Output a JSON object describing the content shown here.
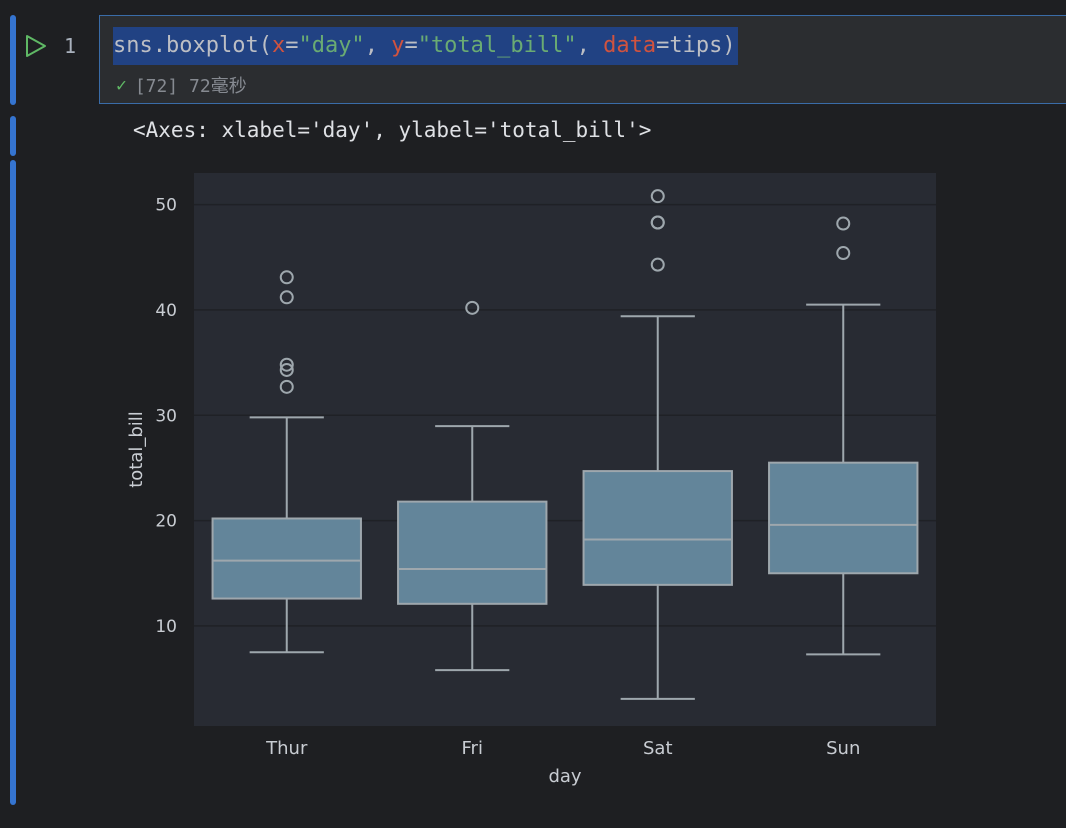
{
  "cell": {
    "line_number": "1",
    "code": {
      "fn": "sns.boxplot(",
      "k1": "x",
      "eq1": "=",
      "s1": "\"day\"",
      "sep1": ", ",
      "k2": "y",
      "eq2": "=",
      "s2": "\"total_bill\"",
      "sep2": ", ",
      "k3": "data",
      "eq3": "=",
      "rest": "tips)"
    },
    "status": "[72] 72毫秒"
  },
  "output": {
    "text": "<Axes: xlabel='day', ylabel='total_bill'>"
  },
  "chart_data": {
    "type": "box",
    "xlabel": "day",
    "ylabel": "total_bill",
    "ylim": [
      0.5,
      53
    ],
    "yticks": [
      10,
      20,
      30,
      40,
      50
    ],
    "categories": [
      "Thur",
      "Fri",
      "Sat",
      "Sun"
    ],
    "boxes": [
      {
        "category": "Thur",
        "whisker_low": 7.5,
        "q1": 12.6,
        "median": 16.2,
        "q3": 20.2,
        "whisker_high": 29.8,
        "outliers": [
          32.7,
          34.3,
          34.8,
          41.2,
          43.1
        ]
      },
      {
        "category": "Fri",
        "whisker_low": 5.8,
        "q1": 12.1,
        "median": 15.4,
        "q3": 21.8,
        "whisker_high": 28.97,
        "outliers": [
          40.2
        ]
      },
      {
        "category": "Sat",
        "whisker_low": 3.07,
        "q1": 13.9,
        "median": 18.2,
        "q3": 24.7,
        "whisker_high": 39.4,
        "outliers": [
          44.3,
          48.3,
          48.3,
          50.8
        ]
      },
      {
        "category": "Sun",
        "whisker_low": 7.3,
        "q1": 15.0,
        "median": 19.6,
        "q3": 25.5,
        "whisker_high": 40.5,
        "outliers": [
          45.4,
          48.2
        ]
      }
    ],
    "colors": {
      "box": "#63859a",
      "line": "#9ea7ad",
      "plot_bg": "#282b33",
      "grid": "#1f2126",
      "tick_text": "#c8ccd2"
    }
  }
}
